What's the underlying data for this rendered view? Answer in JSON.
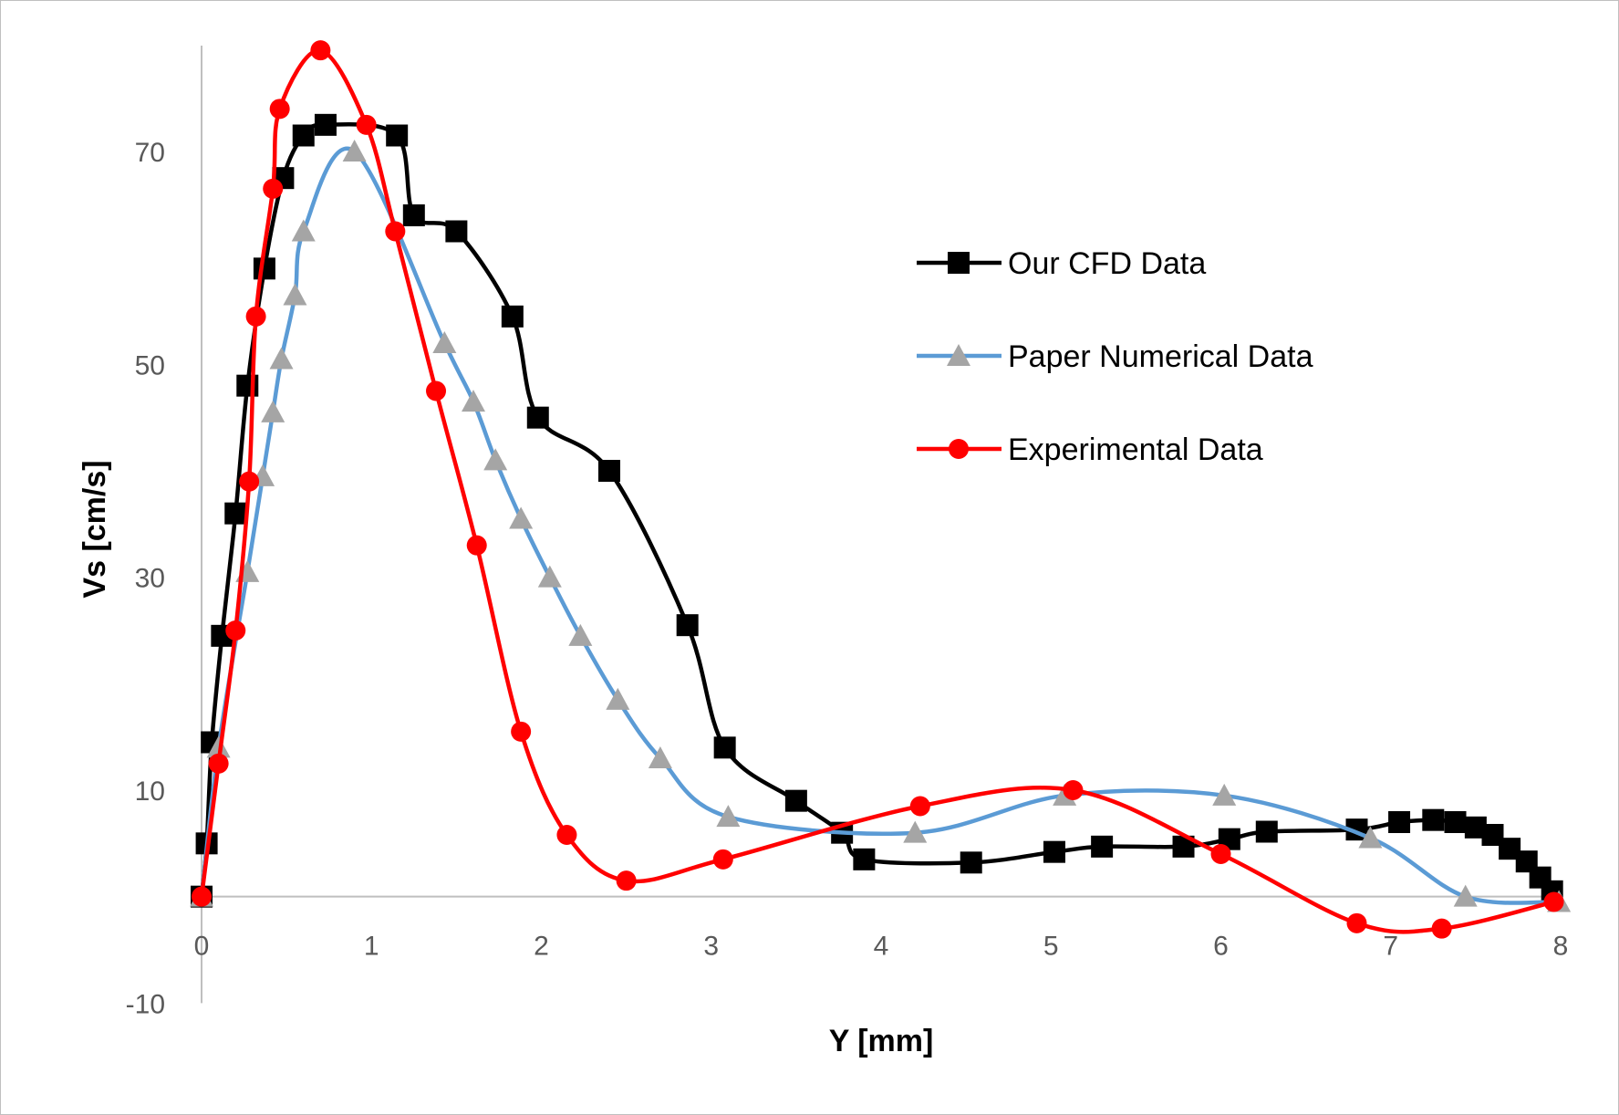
{
  "chart_data": {
    "type": "scatter",
    "xlabel": "Y [mm]",
    "ylabel": "Vs [cm/s]",
    "xlim": [
      0,
      8
    ],
    "ylim": [
      -10,
      80
    ],
    "x_ticks": [
      0,
      1,
      2,
      3,
      4,
      5,
      6,
      7,
      8
    ],
    "y_ticks": [
      -10,
      10,
      30,
      50,
      70
    ],
    "grid": false,
    "smoothed_lines": true,
    "legend_position": "right",
    "series": [
      {
        "name": "Our CFD Data",
        "color": "#000000",
        "marker": "square",
        "marker_color": "#000000",
        "x": [
          0,
          0.03,
          0.06,
          0.12,
          0.2,
          0.27,
          0.37,
          0.48,
          0.6,
          0.73,
          1.15,
          1.25,
          1.5,
          1.83,
          1.98,
          2.4,
          2.86,
          3.08,
          3.5,
          3.77,
          3.9,
          4.53,
          5.02,
          5.3,
          5.78,
          6.05,
          6.27,
          6.8,
          7.05,
          7.25,
          7.38,
          7.5,
          7.6,
          7.7,
          7.8,
          7.88,
          7.95
        ],
        "y": [
          0,
          5,
          14.5,
          24.5,
          36,
          48,
          59,
          67.5,
          71.5,
          72.5,
          71.5,
          64,
          62.5,
          54.5,
          45,
          40,
          25.5,
          14,
          9,
          6,
          3.5,
          3.5,
          4,
          4.5,
          4.5,
          5.5,
          6,
          6.2,
          7,
          7.2,
          7,
          6.5,
          5.8,
          4.5,
          3.3,
          1.8,
          0.5
        ],
        "x_fixed": [
          0,
          0.03,
          0.06,
          0.12,
          0.2,
          0.27,
          0.37,
          0.48,
          0.6,
          0.73,
          1.15,
          1.25,
          1.5,
          1.83,
          1.98,
          2.4,
          2.86,
          3.08,
          3.5,
          3.77,
          3.9,
          4.53,
          5.02,
          5.3,
          5.78,
          6.05,
          6.27,
          6.8,
          7.05,
          7.25,
          7.38,
          7.5,
          7.6,
          7.7,
          7.8,
          7.88,
          7.95
        ],
        "y_fixed": [
          0,
          5,
          14.5,
          24.5,
          36,
          48,
          59,
          67.5,
          71.5,
          72.5,
          71.5,
          64,
          62.5,
          54.5,
          45,
          40,
          25.5,
          14,
          9,
          6,
          3.5,
          3.2,
          4.2,
          4.7,
          4.7,
          5.4,
          6.1,
          6.3,
          7,
          7.2,
          7,
          6.5,
          5.8,
          4.5,
          3.3,
          1.8,
          0.5
        ]
      },
      {
        "name": "Paper Numerical Data",
        "color": "#5b9bd5",
        "marker": "triangle",
        "marker_color": "#a5a5a5",
        "x": [
          0,
          0.1,
          0.27,
          0.36,
          0.42,
          0.47,
          0.55,
          0.6,
          0.9,
          1.43,
          1.6,
          1.73,
          1.88,
          2.05,
          2.23,
          2.45,
          2.7,
          3.1,
          4.2,
          5.08,
          6.02,
          6.88,
          7.44,
          7.99
        ],
        "y": [
          0,
          14,
          30.5,
          39.5,
          45.5,
          50.5,
          56.5,
          62.5,
          70,
          52,
          46.5,
          41,
          35.5,
          30,
          24.5,
          18.5,
          13,
          7.5,
          6,
          9.5,
          9.5,
          5.5,
          0,
          -0.5
        ]
      },
      {
        "name": "Experimental Data",
        "color": "#ff0000",
        "marker": "circle",
        "marker_color": "#ff0000",
        "x": [
          0,
          0.1,
          0.2,
          0.28,
          0.32,
          0.42,
          0.46,
          0.7,
          0.97,
          1.14,
          1.38,
          1.62,
          1.88,
          2.15,
          2.5,
          3.07,
          4.23,
          5.13,
          6.0,
          6.8,
          7.3,
          7.96
        ],
        "y": [
          0,
          12.5,
          25,
          39,
          54.5,
          66.5,
          74,
          79.5,
          72.5,
          62.5,
          47.5,
          33,
          15.5,
          5.8,
          1.5,
          3.5,
          8.5,
          10,
          4,
          -2.5,
          -3,
          -0.5
        ]
      }
    ]
  }
}
